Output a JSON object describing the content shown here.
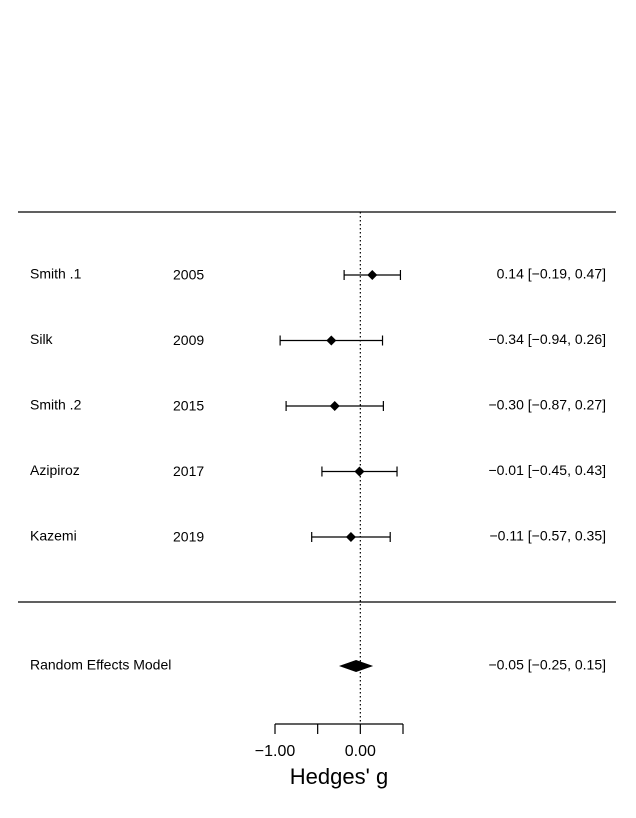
{
  "chart_data": {
    "type": "forest",
    "categories": [
      "Smith .1",
      "Silk",
      "Smith .2",
      "Azipiroz",
      "Kazemi"
    ],
    "years": [
      2005,
      2009,
      2015,
      2017,
      2019
    ],
    "values": [
      0.14,
      -0.34,
      -0.3,
      -0.01,
      -0.11
    ],
    "lower": [
      -0.19,
      -0.94,
      -0.87,
      -0.45,
      -0.57
    ],
    "upper": [
      0.47,
      0.26,
      0.27,
      0.43,
      0.35
    ],
    "value_labels": [
      "0.14 [−0.19, 0.47]",
      "−0.34 [−0.94, 0.26]",
      "−0.30 [−0.87, 0.27]",
      "−0.01 [−0.45, 0.43]",
      "−0.11 [−0.57, 0.35]"
    ],
    "summary": {
      "name": "Random Effects Model",
      "value": -0.05,
      "lower": -0.25,
      "upper": 0.15,
      "value_label": "−0.05 [−0.25, 0.15]"
    },
    "color": "#000000",
    "xlabel": "Hedges' g",
    "xlim": [
      -1,
      0.5
    ],
    "xticks": [
      {
        "value": -1,
        "label": "−1.00"
      },
      {
        "value": 0,
        "label": "0.00"
      }
    ],
    "xminor_ticks": [
      -0.5,
      0.5
    ],
    "reference_line": 0
  }
}
